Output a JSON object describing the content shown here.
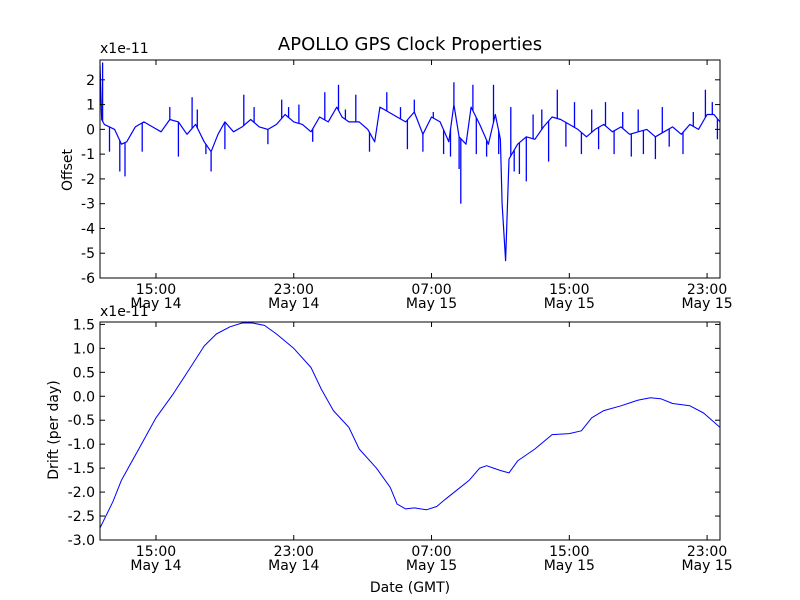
{
  "title": "APOLLO GPS Clock Properties",
  "colors": {
    "line": "#0000ff",
    "axes": "#000000",
    "background": "#ffffff"
  },
  "chart_data": [
    {
      "type": "line",
      "id": "offset",
      "title": "APOLLO GPS Clock Properties",
      "ylabel": "Offset",
      "xlabel": "",
      "multiplier": "x1e-11",
      "xlim": [
        11.75,
        47.75
      ],
      "ylim": [
        -6,
        2.8
      ],
      "yticks": [
        -6,
        -5,
        -4,
        -3,
        -2,
        -1,
        0,
        1,
        2
      ],
      "ytick_labels": [
        "-6",
        "-5",
        "-4",
        "-3",
        "-2",
        "-1",
        "0",
        "1",
        "2"
      ],
      "xticks": [
        15,
        23,
        31,
        39,
        47
      ],
      "xtick_labels": [
        [
          "15:00",
          "May 14"
        ],
        [
          "23:00",
          "May 14"
        ],
        [
          "07:00",
          "May 15"
        ],
        [
          "15:00",
          "May 15"
        ],
        [
          "23:00",
          "May 15"
        ]
      ],
      "series": [
        {
          "name": "offset",
          "points": [
            [
              11.75,
              2.6
            ],
            [
              11.85,
              0.4
            ],
            [
              12.0,
              0.2
            ],
            [
              12.3,
              0.1
            ],
            [
              12.6,
              0.0
            ],
            [
              13.0,
              -0.6
            ],
            [
              13.3,
              -0.5
            ],
            [
              13.8,
              0.1
            ],
            [
              14.3,
              0.3
            ],
            [
              14.8,
              0.1
            ],
            [
              15.3,
              -0.1
            ],
            [
              15.8,
              0.4
            ],
            [
              16.3,
              0.3
            ],
            [
              16.8,
              -0.2
            ],
            [
              17.3,
              0.2
            ],
            [
              17.8,
              -0.5
            ],
            [
              18.2,
              -0.9
            ],
            [
              18.6,
              -0.2
            ],
            [
              19.0,
              0.3
            ],
            [
              19.5,
              -0.1
            ],
            [
              20.0,
              0.1
            ],
            [
              20.5,
              0.4
            ],
            [
              21.0,
              0.1
            ],
            [
              21.5,
              0.0
            ],
            [
              22.0,
              0.2
            ],
            [
              22.5,
              0.6
            ],
            [
              23.0,
              0.3
            ],
            [
              23.5,
              0.2
            ],
            [
              24.0,
              -0.1
            ],
            [
              24.5,
              0.5
            ],
            [
              25.0,
              0.3
            ],
            [
              25.5,
              0.9
            ],
            [
              25.8,
              0.5
            ],
            [
              26.2,
              0.3
            ],
            [
              26.8,
              0.3
            ],
            [
              27.3,
              0.0
            ],
            [
              27.7,
              -0.5
            ],
            [
              28.0,
              0.9
            ],
            [
              28.5,
              0.7
            ],
            [
              29.0,
              0.5
            ],
            [
              29.5,
              0.3
            ],
            [
              30.0,
              0.7
            ],
            [
              30.5,
              -0.2
            ],
            [
              31.0,
              0.5
            ],
            [
              31.5,
              0.3
            ],
            [
              32.0,
              -0.5
            ],
            [
              32.3,
              1.0
            ],
            [
              32.6,
              -0.3
            ],
            [
              33.0,
              -0.6
            ],
            [
              33.3,
              0.9
            ],
            [
              33.8,
              0.2
            ],
            [
              34.3,
              -0.6
            ],
            [
              34.7,
              0.6
            ],
            [
              35.0,
              -0.4
            ],
            [
              35.1,
              -3.0
            ],
            [
              35.3,
              -5.3
            ],
            [
              35.5,
              -1.2
            ],
            [
              36.0,
              -0.6
            ],
            [
              36.5,
              -0.3
            ],
            [
              37.0,
              -0.4
            ],
            [
              37.5,
              0.1
            ],
            [
              38.0,
              0.5
            ],
            [
              38.5,
              0.4
            ],
            [
              39.0,
              0.2
            ],
            [
              39.5,
              0.0
            ],
            [
              40.0,
              -0.3
            ],
            [
              40.5,
              0.0
            ],
            [
              41.0,
              0.2
            ],
            [
              41.5,
              -0.1
            ],
            [
              42.0,
              0.1
            ],
            [
              42.5,
              -0.2
            ],
            [
              43.0,
              -0.1
            ],
            [
              43.5,
              0.0
            ],
            [
              44.0,
              -0.3
            ],
            [
              44.5,
              -0.1
            ],
            [
              45.0,
              0.1
            ],
            [
              45.5,
              -0.2
            ],
            [
              46.0,
              0.2
            ],
            [
              46.5,
              0.0
            ],
            [
              47.0,
              0.6
            ],
            [
              47.4,
              0.6
            ],
            [
              47.75,
              0.3
            ]
          ]
        }
      ],
      "spikes": [
        [
          11.9,
          2.7
        ],
        [
          12.3,
          -0.9
        ],
        [
          12.9,
          -1.7
        ],
        [
          13.2,
          -1.9
        ],
        [
          14.2,
          -0.9
        ],
        [
          15.8,
          0.9
        ],
        [
          16.3,
          -1.1
        ],
        [
          17.1,
          1.3
        ],
        [
          17.4,
          0.8
        ],
        [
          17.9,
          -1.0
        ],
        [
          18.2,
          -1.7
        ],
        [
          19.0,
          -0.8
        ],
        [
          20.1,
          1.4
        ],
        [
          20.7,
          0.9
        ],
        [
          21.5,
          -0.6
        ],
        [
          22.3,
          1.2
        ],
        [
          22.7,
          0.9
        ],
        [
          23.3,
          1.0
        ],
        [
          24.1,
          -0.5
        ],
        [
          24.8,
          1.5
        ],
        [
          25.6,
          1.8
        ],
        [
          26.0,
          0.8
        ],
        [
          26.6,
          1.4
        ],
        [
          27.4,
          -0.9
        ],
        [
          28.4,
          1.5
        ],
        [
          29.2,
          0.9
        ],
        [
          29.6,
          -0.8
        ],
        [
          30.0,
          1.2
        ],
        [
          30.5,
          -0.9
        ],
        [
          31.1,
          0.7
        ],
        [
          31.7,
          -1.0
        ],
        [
          32.1,
          -1.1
        ],
        [
          32.3,
          1.9
        ],
        [
          32.6,
          -1.6
        ],
        [
          32.7,
          -3.0
        ],
        [
          33.4,
          1.8
        ],
        [
          33.6,
          -1.0
        ],
        [
          34.2,
          -1.1
        ],
        [
          34.6,
          1.8
        ],
        [
          34.9,
          -1.0
        ],
        [
          35.6,
          0.9
        ],
        [
          35.8,
          -1.7
        ],
        [
          36.1,
          -1.8
        ],
        [
          36.5,
          -2.1
        ],
        [
          36.9,
          0.6
        ],
        [
          37.4,
          0.8
        ],
        [
          37.8,
          -1.3
        ],
        [
          38.3,
          1.6
        ],
        [
          38.8,
          -0.7
        ],
        [
          39.3,
          1.1
        ],
        [
          39.7,
          -1.0
        ],
        [
          40.3,
          0.8
        ],
        [
          40.7,
          -0.8
        ],
        [
          41.1,
          1.1
        ],
        [
          41.6,
          -1.0
        ],
        [
          42.1,
          0.7
        ],
        [
          42.6,
          -1.1
        ],
        [
          43.0,
          0.8
        ],
        [
          43.3,
          -1.0
        ],
        [
          44.0,
          -1.2
        ],
        [
          44.4,
          0.9
        ],
        [
          44.8,
          -0.7
        ],
        [
          45.6,
          -1.0
        ],
        [
          46.2,
          0.7
        ],
        [
          46.9,
          1.6
        ],
        [
          47.3,
          1.1
        ],
        [
          47.6,
          -0.4
        ]
      ]
    },
    {
      "type": "line",
      "id": "drift",
      "title": "",
      "ylabel": "Drift (per day)",
      "xlabel": "Date (GMT)",
      "multiplier": "x1e-11",
      "xlim": [
        11.75,
        47.75
      ],
      "ylim": [
        -3.0,
        1.55
      ],
      "yticks": [
        -3.0,
        -2.5,
        -2.0,
        -1.5,
        -1.0,
        -0.5,
        0.0,
        0.5,
        1.0,
        1.5
      ],
      "ytick_labels": [
        "-3.0",
        "-2.5",
        "-2.0",
        "-1.5",
        "-1.0",
        "-0.5",
        "0.0",
        "0.5",
        "1.0",
        "1.5"
      ],
      "xticks": [
        15,
        23,
        31,
        39,
        47
      ],
      "xtick_labels": [
        [
          "15:00",
          "May 14"
        ],
        [
          "23:00",
          "May 14"
        ],
        [
          "07:00",
          "May 15"
        ],
        [
          "15:00",
          "May 15"
        ],
        [
          "23:00",
          "May 15"
        ]
      ],
      "series": [
        {
          "name": "drift",
          "points": [
            [
              11.75,
              -2.75
            ],
            [
              12.5,
              -2.2
            ],
            [
              13.0,
              -1.75
            ],
            [
              14.0,
              -1.1
            ],
            [
              15.0,
              -0.45
            ],
            [
              16.0,
              0.05
            ],
            [
              17.0,
              0.6
            ],
            [
              17.8,
              1.05
            ],
            [
              18.5,
              1.3
            ],
            [
              19.3,
              1.45
            ],
            [
              20.0,
              1.53
            ],
            [
              20.6,
              1.53
            ],
            [
              21.3,
              1.48
            ],
            [
              22.0,
              1.3
            ],
            [
              23.0,
              1.0
            ],
            [
              24.0,
              0.6
            ],
            [
              24.6,
              0.15
            ],
            [
              25.3,
              -0.3
            ],
            [
              26.2,
              -0.65
            ],
            [
              26.8,
              -1.1
            ],
            [
              27.8,
              -1.5
            ],
            [
              28.6,
              -1.9
            ],
            [
              29.0,
              -2.25
            ],
            [
              29.5,
              -2.35
            ],
            [
              30.0,
              -2.33
            ],
            [
              30.7,
              -2.37
            ],
            [
              31.3,
              -2.3
            ],
            [
              31.8,
              -2.15
            ],
            [
              32.5,
              -1.95
            ],
            [
              33.2,
              -1.75
            ],
            [
              33.8,
              -1.5
            ],
            [
              34.2,
              -1.45
            ],
            [
              34.6,
              -1.5
            ],
            [
              35.0,
              -1.55
            ],
            [
              35.5,
              -1.6
            ],
            [
              36.0,
              -1.35
            ],
            [
              37.0,
              -1.1
            ],
            [
              38.0,
              -0.8
            ],
            [
              39.0,
              -0.78
            ],
            [
              39.7,
              -0.72
            ],
            [
              40.3,
              -0.45
            ],
            [
              41.0,
              -0.3
            ],
            [
              42.0,
              -0.2
            ],
            [
              43.0,
              -0.08
            ],
            [
              43.7,
              -0.03
            ],
            [
              44.3,
              -0.05
            ],
            [
              45.0,
              -0.15
            ],
            [
              46.0,
              -0.2
            ],
            [
              46.8,
              -0.35
            ],
            [
              47.75,
              -0.65
            ]
          ]
        }
      ]
    }
  ]
}
